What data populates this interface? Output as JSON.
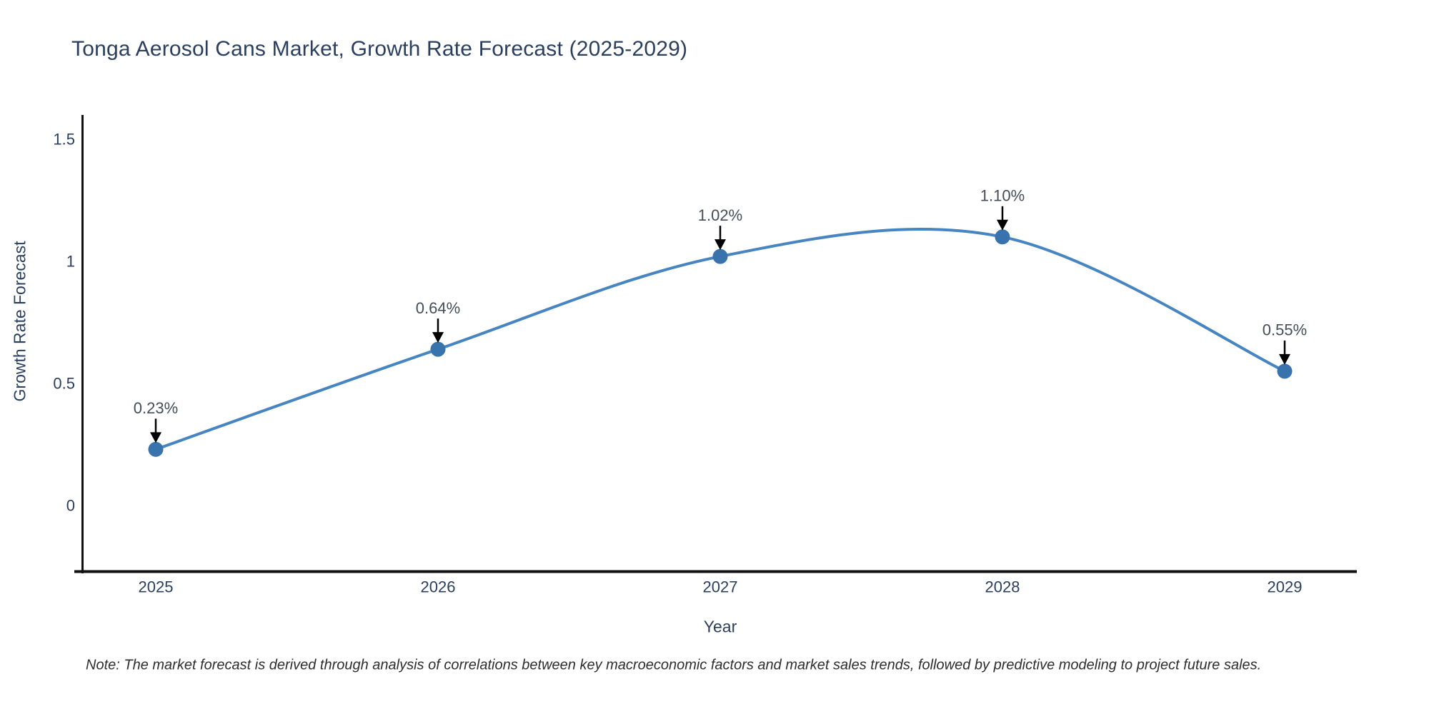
{
  "chart": {
    "title": "Tonga Aerosol Cans Market, Growth Rate Forecast (2025-2029)",
    "ylabel": "Growth Rate Forecast",
    "xlabel": "Year",
    "note": "Note: The market forecast is derived through analysis of correlations between key macroeconomic factors and market sales trends, followed by predictive modeling to project future sales."
  },
  "chart_data": {
    "type": "line",
    "line_shape": "spline",
    "title": "Tonga Aerosol Cans Market, Growth Rate Forecast (2025-2029)",
    "xlabel": "Year",
    "ylabel": "Growth Rate Forecast",
    "x": [
      "2025",
      "2026",
      "2027",
      "2028",
      "2029"
    ],
    "values": [
      0.23,
      0.64,
      1.02,
      1.1,
      0.55
    ],
    "point_labels": [
      "0.23%",
      "0.64%",
      "1.02%",
      "1.10%",
      "0.55%"
    ],
    "yticks": [
      0,
      0.5,
      1,
      1.5
    ],
    "ytick_labels": [
      "0",
      "0.5",
      "1",
      "1.5"
    ],
    "ylim": [
      -0.28,
      1.6
    ],
    "grid": false,
    "legend": "none",
    "markers": true,
    "annotations_have_arrows": true,
    "colors": {
      "line": "#4685c1",
      "marker": "#3973ae",
      "axis": "#111111",
      "axis_text": "#2a3f5f",
      "annotation_text": "#444e59",
      "arrow": "#000000",
      "note_text": "#2e2e2e",
      "background": "#ffffff"
    }
  }
}
